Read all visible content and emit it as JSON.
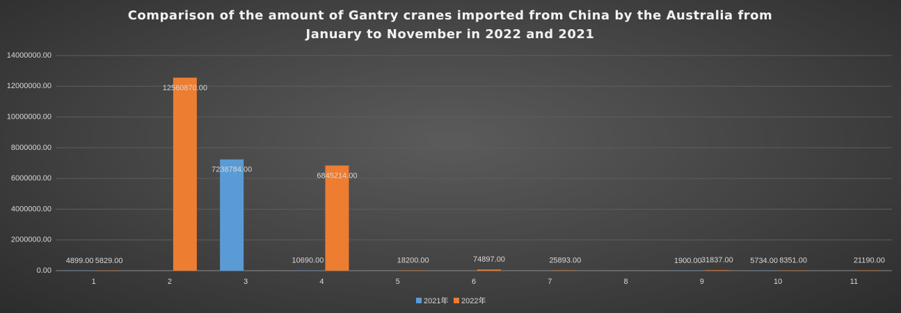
{
  "chart_data": {
    "type": "bar",
    "title": "Comparison of the amount of Gantry cranes imported from China by the Australia from January to November in 2022 and 2021",
    "categories": [
      "1",
      "2",
      "3",
      "4",
      "5",
      "6",
      "7",
      "8",
      "9",
      "10",
      "11"
    ],
    "series": [
      {
        "name": "2021年",
        "color": "#5b9bd5",
        "values": [
          4899,
          null,
          7238784,
          10690,
          null,
          null,
          null,
          null,
          1900,
          5734,
          null
        ],
        "value_labels": [
          "4899.00",
          null,
          "7238784.00",
          "10690.00",
          null,
          null,
          null,
          null,
          "1900.00",
          "5734.00",
          null
        ]
      },
      {
        "name": "2022年",
        "color": "#ed7d31",
        "values": [
          5829,
          12560870,
          null,
          6845214,
          18200,
          74897,
          25893,
          null,
          31837,
          8351,
          21190
        ],
        "value_labels": [
          "5829.00",
          "12560870.00",
          null,
          "6845214.00",
          "18200.00",
          "74897.00",
          "25893.00",
          null,
          "31837.00",
          "8351.00",
          "21190.00"
        ]
      }
    ],
    "ylim": [
      0,
      14000000
    ],
    "yticks": [
      {
        "value": 0,
        "label": "0.00"
      },
      {
        "value": 2000000,
        "label": "2000000.00"
      },
      {
        "value": 4000000,
        "label": "4000000.00"
      },
      {
        "value": 6000000,
        "label": "6000000.00"
      },
      {
        "value": 8000000,
        "label": "8000000.00"
      },
      {
        "value": 10000000,
        "label": "10000000.00"
      },
      {
        "value": 12000000,
        "label": "12000000.00"
      },
      {
        "value": 14000000,
        "label": "14000000.00"
      }
    ],
    "grid": true,
    "legend": "bottom"
  }
}
